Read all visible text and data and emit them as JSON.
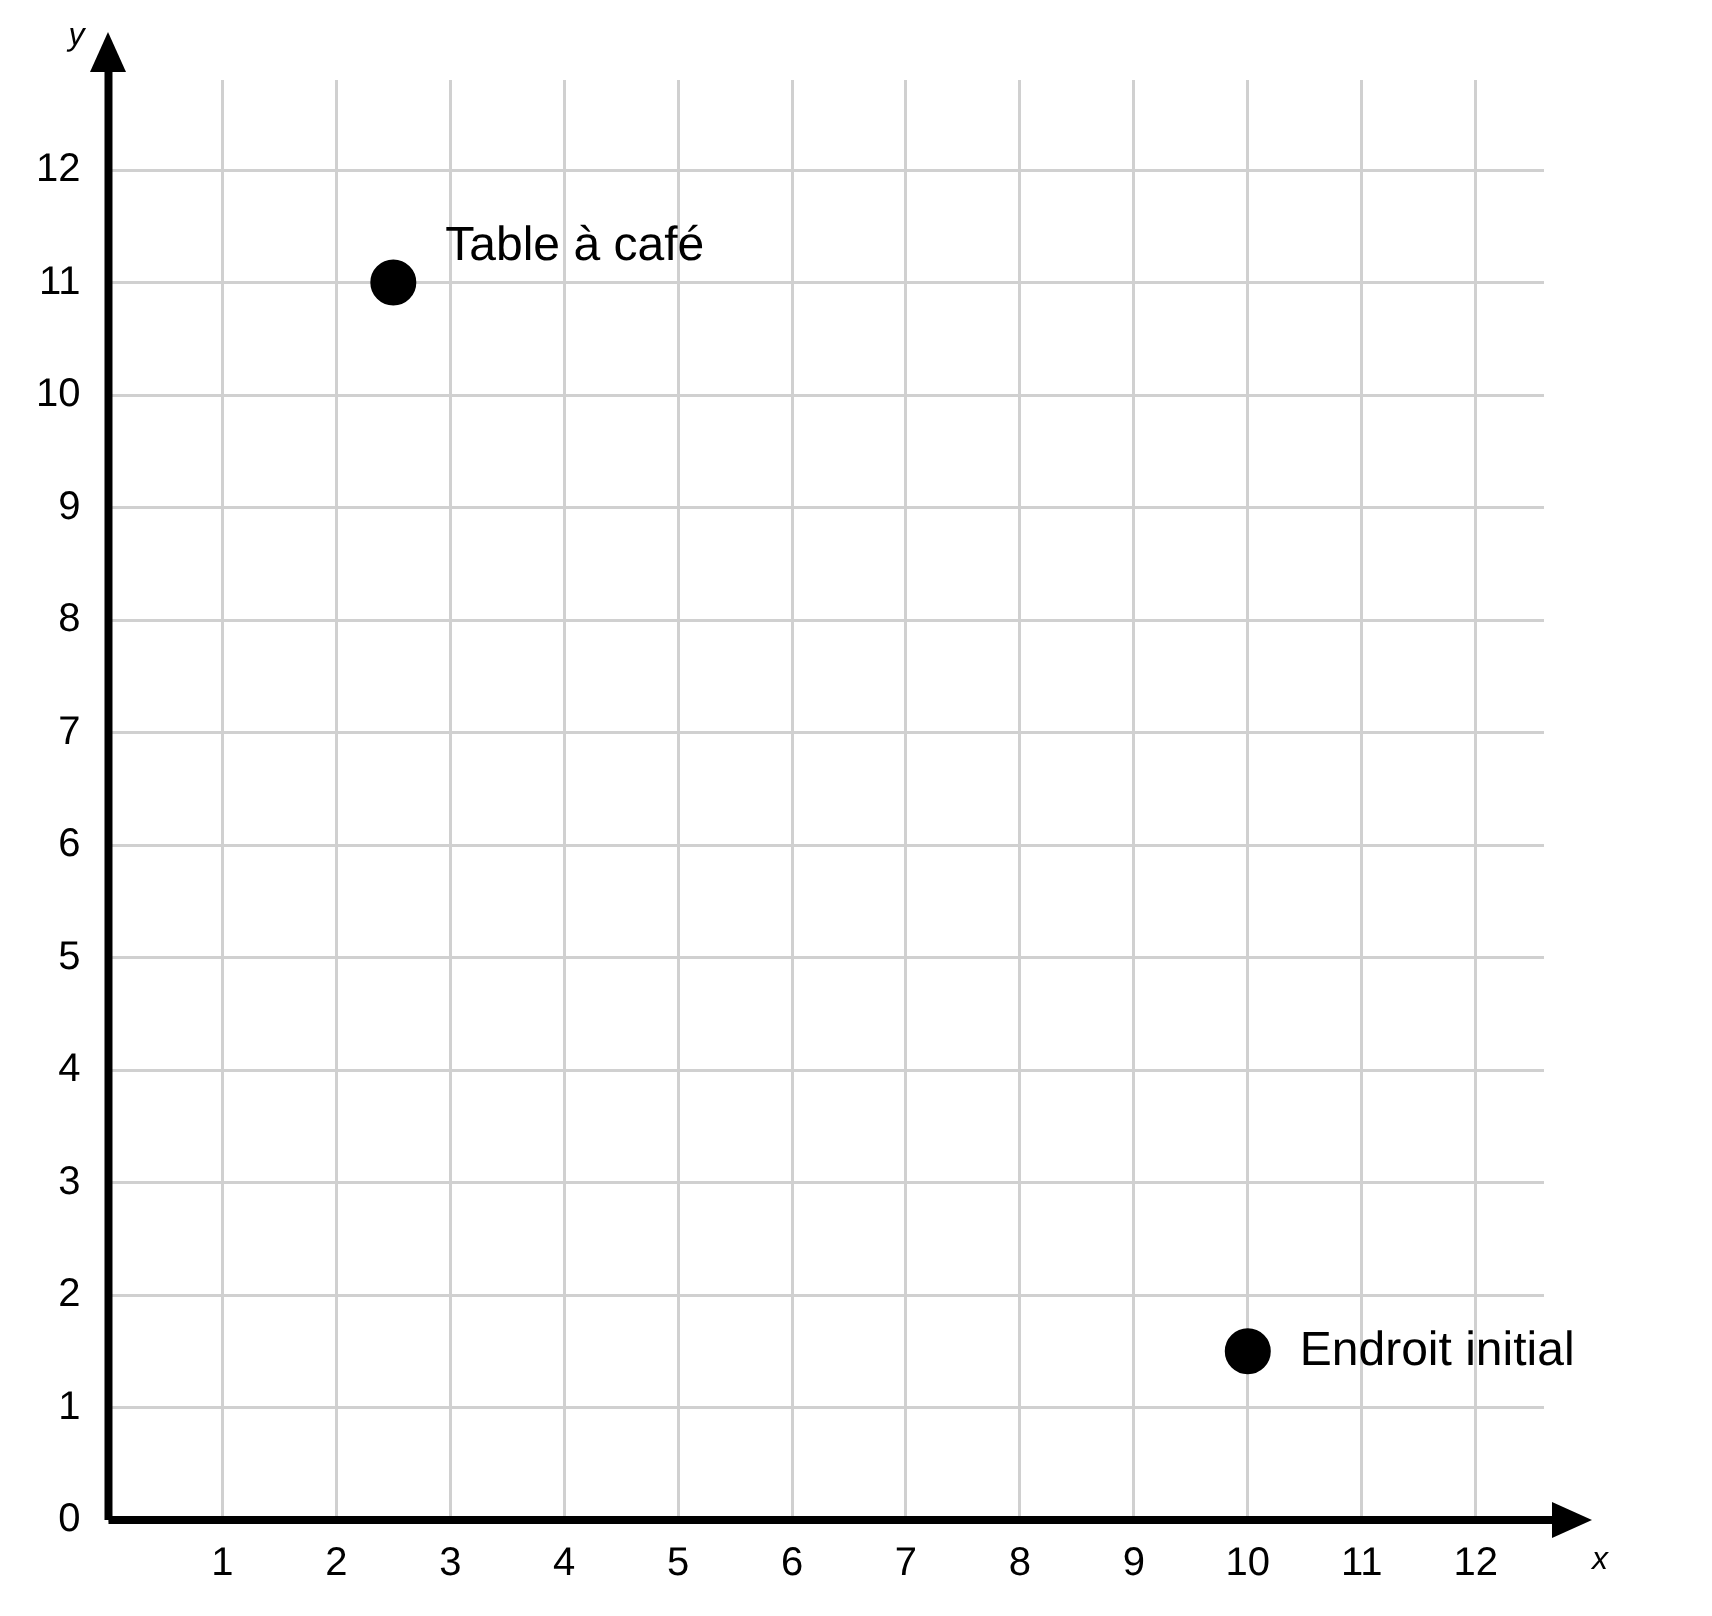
{
  "chart_data": {
    "type": "scatter",
    "xlabel": "x",
    "ylabel": "y",
    "x": [
      2.5,
      10
    ],
    "values": [
      11,
      1.5
    ],
    "color": "#000000",
    "marker": "circle",
    "xlim": [
      0,
      12.6
    ],
    "ylim": [
      0,
      12.8
    ],
    "xticks": [
      1,
      2,
      3,
      4,
      5,
      6,
      7,
      8,
      9,
      10,
      11,
      12
    ],
    "yticks": [
      0,
      1,
      2,
      3,
      4,
      5,
      6,
      7,
      8,
      9,
      10,
      11,
      12
    ],
    "grid": true,
    "annotations": [
      {
        "text": "Table à café",
        "x": 2.5,
        "y": 11
      },
      {
        "text": "Endroit initial",
        "x": 10,
        "y": 1.5
      }
    ]
  }
}
